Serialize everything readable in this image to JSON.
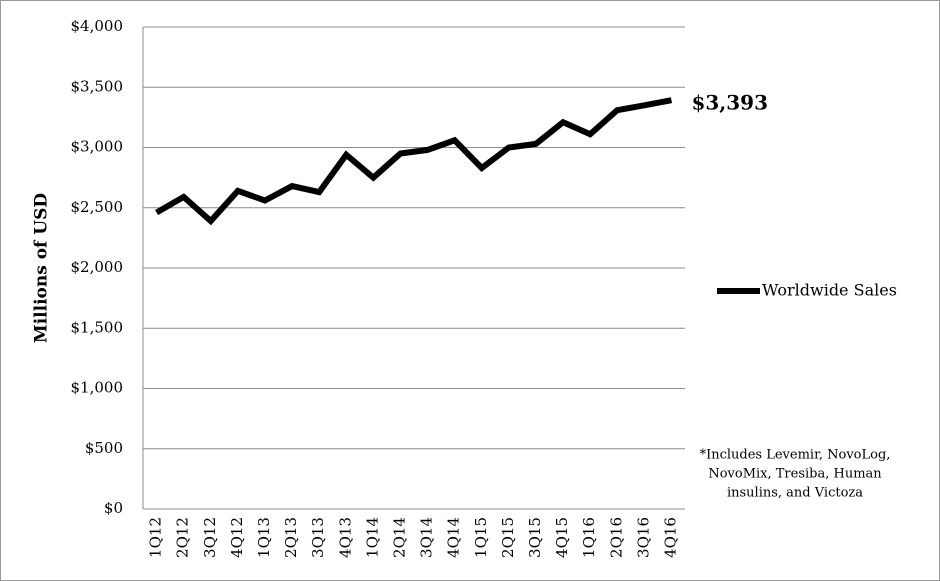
{
  "chart_data": {
    "type": "line",
    "y_label": "Millions of USD",
    "categories": [
      "1Q12",
      "2Q12",
      "3Q12",
      "4Q12",
      "1Q13",
      "2Q13",
      "3Q13",
      "4Q13",
      "1Q14",
      "2Q14",
      "3Q14",
      "4Q14",
      "1Q15",
      "2Q15",
      "3Q15",
      "4Q15",
      "1Q16",
      "2Q16",
      "3Q16",
      "4Q16"
    ],
    "series": [
      {
        "name": "Worldwide Sales",
        "color": "#000000",
        "values": [
          2460,
          2590,
          2390,
          2640,
          2560,
          2680,
          2630,
          2940,
          2750,
          2950,
          2980,
          3060,
          2830,
          3000,
          3030,
          3210,
          3110,
          3310,
          3350,
          3393
        ],
        "value_labels": [
          null,
          null,
          null,
          null,
          null,
          null,
          null,
          null,
          null,
          null,
          null,
          null,
          null,
          null,
          null,
          null,
          null,
          null,
          null,
          "$3,393"
        ]
      }
    ],
    "ylim": [
      0,
      4000
    ],
    "yticks": [
      {
        "value": 0,
        "label": "$0"
      },
      {
        "value": 500,
        "label": "$500"
      },
      {
        "value": 1000,
        "label": "$1,000"
      },
      {
        "value": 1500,
        "label": "$1,500"
      },
      {
        "value": 2000,
        "label": "$2,000"
      },
      {
        "value": 2500,
        "label": "$2,500"
      },
      {
        "value": 3000,
        "label": "$3,000"
      },
      {
        "value": 3500,
        "label": "$3,500"
      },
      {
        "value": 4000,
        "label": "$4,000"
      }
    ],
    "grid": true,
    "legend": "right",
    "note": [
      "*Includes Levemir, NovoLog,",
      "NovoMix, Tresiba, Human",
      "insulins, and Victoza"
    ]
  }
}
